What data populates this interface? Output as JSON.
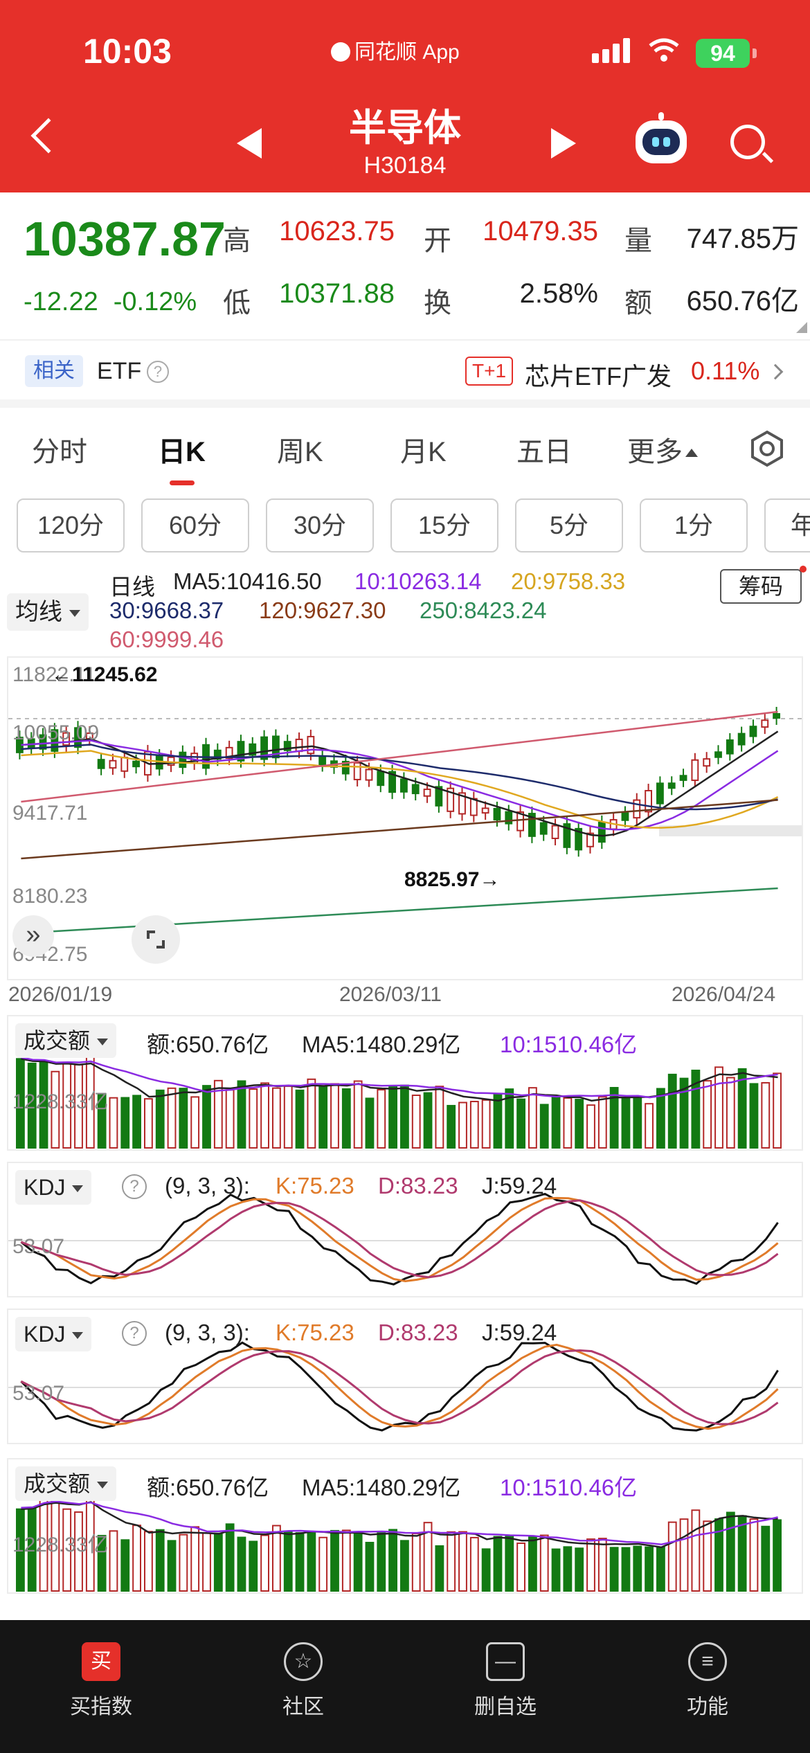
{
  "status_bar": {
    "time": "10:03",
    "app": "同花顺 App",
    "battery": "94"
  },
  "header": {
    "title": "半导体",
    "code": "H30184"
  },
  "quote": {
    "price": "10387.87",
    "change": "-12.22",
    "change_pct": "-0.12%",
    "high_label": "高",
    "high": "10623.75",
    "low_label": "低",
    "low": "10371.88",
    "open_label": "开",
    "open": "10479.35",
    "turnover_label": "换",
    "turnover": "2.58%",
    "volume_label": "量",
    "volume": "747.85万",
    "amount_label": "额",
    "amount": "650.76亿"
  },
  "related": {
    "badge": "相关",
    "label": "ETF",
    "t1": "T+1",
    "etf_name": "芯片ETF广发",
    "etf_pct": "0.11%"
  },
  "tabs": [
    "分时",
    "日K",
    "周K",
    "月K",
    "五日",
    "更多"
  ],
  "periods": [
    "120分",
    "60分",
    "30分",
    "15分",
    "5分",
    "1分",
    "年"
  ],
  "ma_legend": {
    "select": "均线",
    "series_label": "日线",
    "ma5": "MA5:10416.50",
    "ma10": "10:10263.14",
    "ma20": "20:9758.33",
    "ma30": "30:9668.37",
    "ma120": "120:9627.30",
    "ma250": "250:8423.24",
    "ma60": "60:9999.46",
    "chip_button": "筹码"
  },
  "kline": {
    "y_labels": [
      "11822.11",
      "10055.09",
      "9417.71",
      "8180.23",
      "6942.75"
    ],
    "high_note": "←11245.62",
    "low_note": "8825.97→",
    "dates": [
      "2026/01/19",
      "2026/03/11",
      "2026/04/24"
    ],
    "colors": {
      "up": "#b32727",
      "down": "#137a13",
      "ma5": "#222222",
      "ma10": "#8a2be2",
      "ma20": "#e0a820",
      "ma30": "#1d2b6b",
      "ma120": "#6b3a1e",
      "ma250": "#2e8b57",
      "ma60": "#d05a6e"
    }
  },
  "volume_panel": {
    "select": "成交额",
    "amount": "额:650.76亿",
    "ma5": "MA5:1480.29亿",
    "ma10": "10:1510.46亿",
    "axis": "1228.33亿"
  },
  "kdj_panel": {
    "select": "KDJ",
    "params": "(9, 3, 3):",
    "k": "K:75.23",
    "d": "D:83.23",
    "j": "J:59.24",
    "axis": "53.07"
  },
  "bottom_nav": [
    "买指数",
    "社区",
    "删自选",
    "功能"
  ],
  "bottom_icons": {
    "buy": "买",
    "remove": "—",
    "menu": "≡"
  }
}
